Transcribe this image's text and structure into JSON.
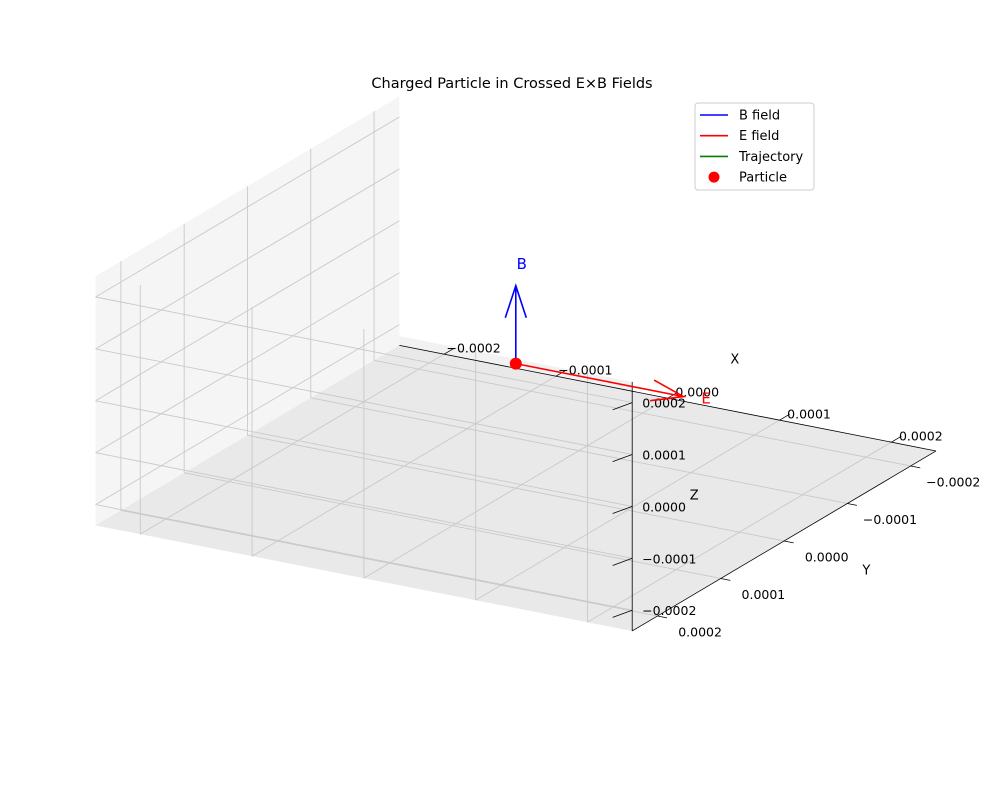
{
  "chart_data": {
    "type": "3d-line",
    "title": "Charged Particle in Crossed E×B Fields",
    "xlabel": "X",
    "ylabel": "Y",
    "zlabel": "Z",
    "xlim": [
      -0.00024,
      0.00024
    ],
    "ylim": [
      -0.00024,
      0.00024
    ],
    "zlim": [
      -0.00024,
      0.00024
    ],
    "x_ticks": [
      "−0.0002",
      "−0.0001",
      "0.0000",
      "0.0001",
      "0.0002"
    ],
    "y_ticks": [
      "−0.0002",
      "−0.0001",
      "0.0000",
      "0.0001",
      "0.0002"
    ],
    "z_ticks": [
      "−0.0002",
      "−0.0001",
      "0.0000",
      "0.0001",
      "0.0002"
    ],
    "tick_values": [
      -0.0002,
      -0.0001,
      0,
      0.0001,
      0.0002
    ],
    "grid": true,
    "legend_position": "top-right",
    "legend": [
      {
        "label": "B field",
        "kind": "line",
        "color": "#0000ff"
      },
      {
        "label": "E field",
        "kind": "line",
        "color": "#ff0000"
      },
      {
        "label": "Trajectory",
        "kind": "line",
        "color": "#008000"
      },
      {
        "label": "Particle",
        "kind": "marker",
        "color": "#ff0000"
      }
    ],
    "particle": {
      "x": 0,
      "y": 0,
      "z": 0,
      "color": "#ff0000"
    },
    "vectors": [
      {
        "name": "B",
        "label": "B",
        "color": "#0000ff",
        "from": [
          0,
          0,
          0
        ],
        "to": [
          0,
          0,
          0.00015
        ]
      },
      {
        "name": "E",
        "label": "E",
        "color": "#ff0000",
        "from": [
          0,
          0,
          0
        ],
        "to": [
          0.00015,
          0,
          0
        ]
      }
    ],
    "trajectory": {
      "x": [
        0
      ],
      "y": [
        0
      ],
      "z": [
        0
      ],
      "color": "#008000"
    }
  }
}
